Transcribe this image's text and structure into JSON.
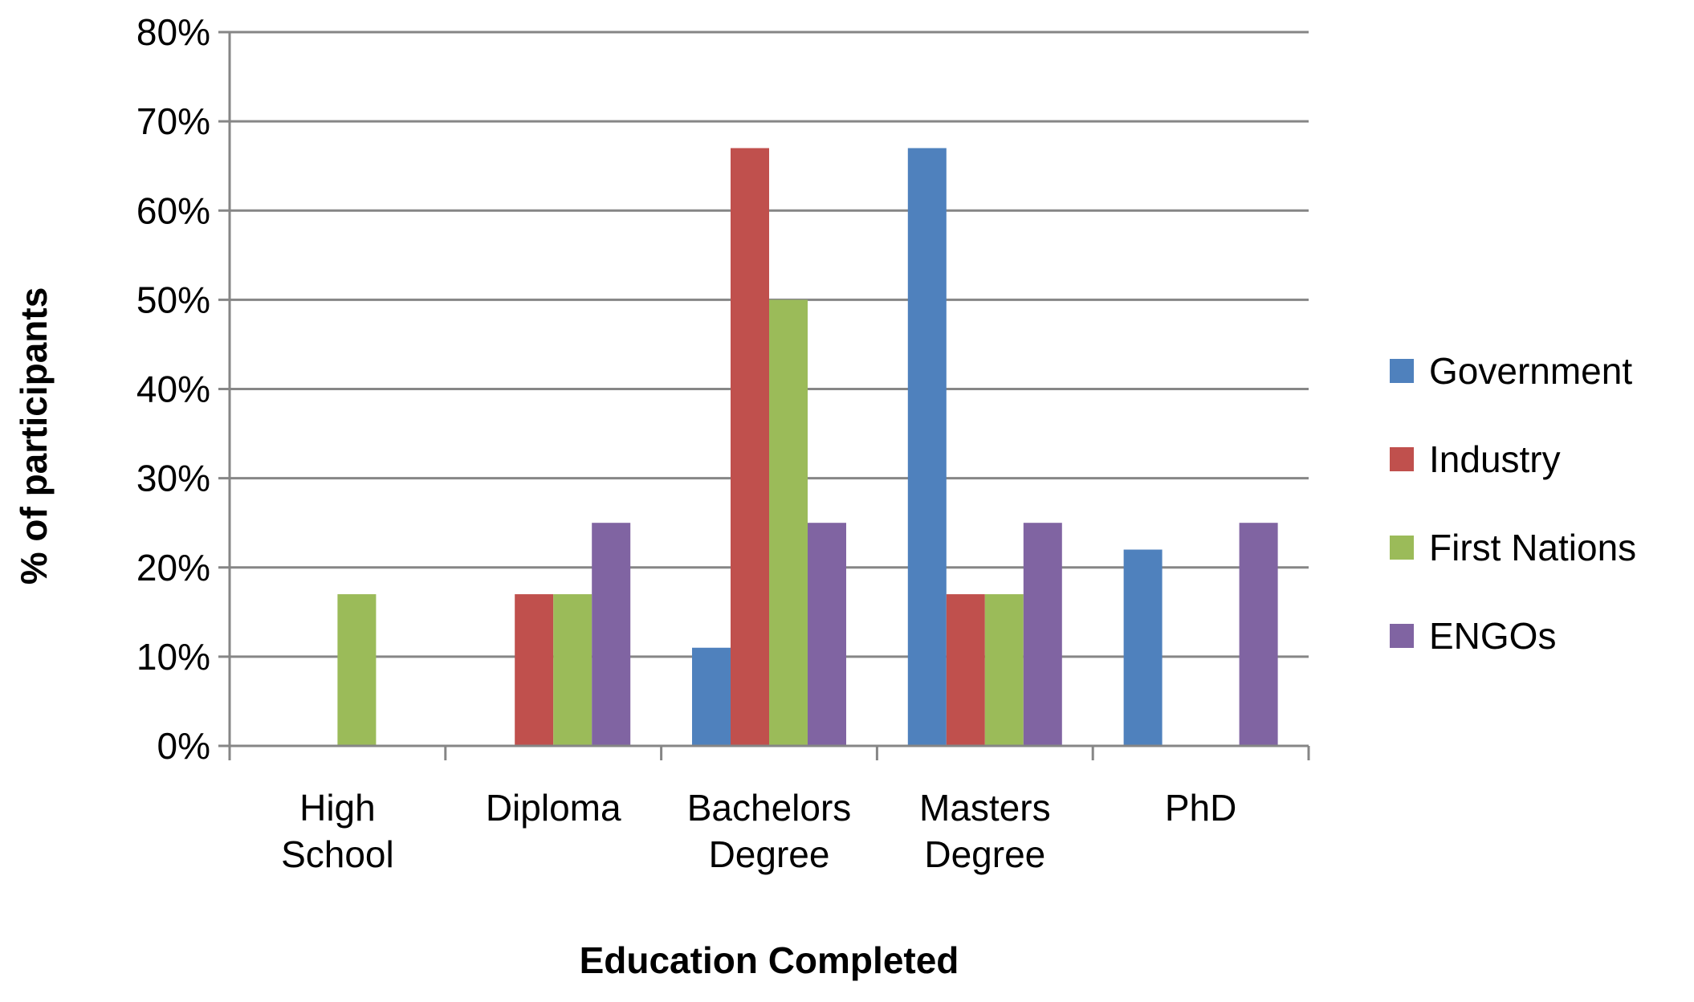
{
  "chart_data": {
    "type": "bar",
    "title": "",
    "xlabel": "Education Completed",
    "ylabel": "% of participants",
    "ylim": [
      0,
      80
    ],
    "yticks": [
      0,
      10,
      20,
      30,
      40,
      50,
      60,
      70,
      80
    ],
    "ytick_labels": [
      "0%",
      "10%",
      "20%",
      "30%",
      "40%",
      "50%",
      "60%",
      "70%",
      "80%"
    ],
    "grid": true,
    "legend_position": "right",
    "categories": [
      [
        "High",
        "School"
      ],
      [
        "Diploma"
      ],
      [
        "Bachelors",
        "Degree"
      ],
      [
        "Masters",
        "Degree"
      ],
      [
        "PhD"
      ]
    ],
    "series": [
      {
        "name": "Government",
        "color": "#4F81BD",
        "values": [
          0,
          0,
          11,
          67,
          22
        ]
      },
      {
        "name": "Industry",
        "color": "#C0504D",
        "values": [
          0,
          17,
          67,
          17,
          0
        ]
      },
      {
        "name": "First Nations",
        "color": "#9BBB59",
        "values": [
          17,
          17,
          50,
          17,
          0
        ]
      },
      {
        "name": "ENGOs",
        "color": "#8064A2",
        "values": [
          0,
          25,
          25,
          25,
          25
        ]
      }
    ]
  }
}
